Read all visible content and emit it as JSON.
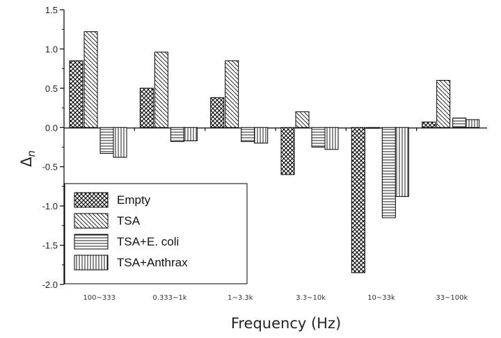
{
  "chart_data": {
    "type": "bar",
    "xlabel": "Frequency (Hz)",
    "ylabel": "Δn",
    "ylabel_main": "Δ",
    "ylabel_sub": "n",
    "ylim": [
      -2.0,
      1.5
    ],
    "yticks": [
      "1.5",
      "1.0",
      "0.5",
      "0.0",
      "-0.5",
      "-1.0",
      "-1.5",
      "-2.0"
    ],
    "ytick_values": [
      1.5,
      1.0,
      0.5,
      0.0,
      -0.5,
      -1.0,
      -1.5,
      -2.0
    ],
    "categories": [
      "100~333",
      "0.333~1k",
      "1~3.3k",
      "3.3~10k",
      "10~33k",
      "33~100k"
    ],
    "series": [
      {
        "name": "Empty",
        "pattern": "crosshatch",
        "values": [
          0.85,
          0.5,
          0.38,
          -0.6,
          -1.85,
          0.07
        ]
      },
      {
        "name": "TSA",
        "pattern": "diagonal",
        "values": [
          1.22,
          0.96,
          0.85,
          0.2,
          -0.01,
          0.6
        ]
      },
      {
        "name": "TSA+E. coli",
        "pattern": "horizontal",
        "values": [
          -0.33,
          -0.18,
          -0.18,
          -0.25,
          -1.15,
          0.12
        ]
      },
      {
        "name": "TSA+Anthrax",
        "pattern": "vertical",
        "values": [
          -0.38,
          -0.17,
          -0.2,
          -0.28,
          -0.88,
          0.1
        ]
      }
    ],
    "legend_position": "bottom-left",
    "grid": false
  }
}
